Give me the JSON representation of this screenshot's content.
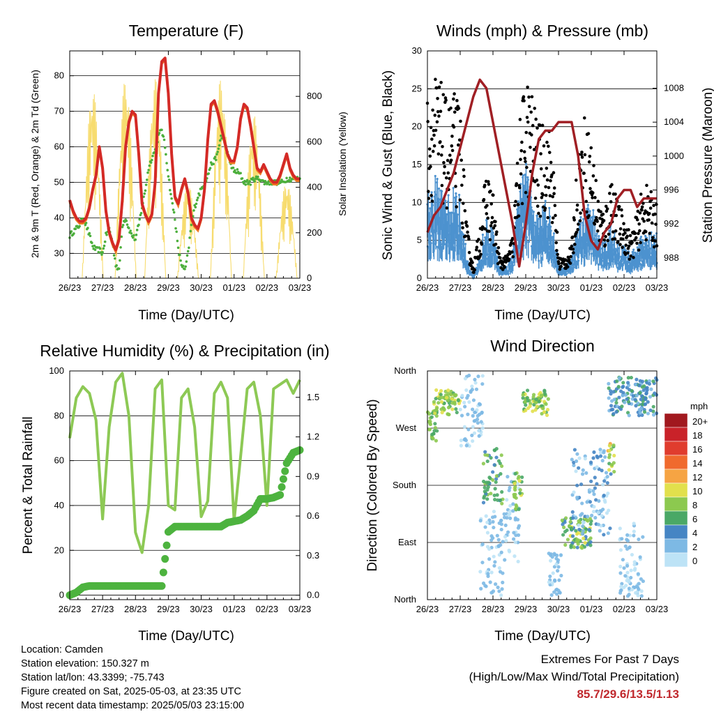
{
  "panels": {
    "temperature": {
      "title": "Temperature (F)",
      "ylabel": "2m & 9m T (Red, Orange) & 2m Td (Green)",
      "y2label": "Solar Insolation (Yellow)",
      "xlabel": "Time (Day/UTC)"
    },
    "winds": {
      "title": "Winds (mph) & Pressure (mb)",
      "ylabel": "Sonic Wind & Gust (Blue, Black)",
      "y2label": "Station Pressure (Maroon)",
      "xlabel": "Time (Day/UTC)"
    },
    "humidity": {
      "title": "Relative Humidity (%) & Precipitation (in)",
      "ylabel": "Percent & Total Rainfall",
      "xlabel": "Time (Day/UTC)"
    },
    "direction": {
      "title": "Wind Direction",
      "ylabel": "Direction (Colored By Speed)",
      "xlabel": "Time (Day/UTC)",
      "legend_title": "mph"
    }
  },
  "info": {
    "location": "Location: Camden",
    "elevation": "Station elevation: 150.327 m",
    "latlon": "Station lat/lon: 43.3399; -75.743",
    "created": "Figure created on Sat, 2025-05-03, at 23:35 UTC",
    "recent": "Most recent data timestamp: 2025/05/03 23:15:00"
  },
  "extremes": {
    "line1": "Extremes For Past 7 Days",
    "line2": "(High/Low/Max Wind/Total Precipitation)",
    "values": "85.7/29.6/13.5/1.13"
  },
  "colors": {
    "temp2m": "#d42a26",
    "temp9m": "#f07a23",
    "dewpoint": "#4caf3c",
    "solar": "#f7dc6f",
    "wind": "#4d92cf",
    "gust": "#000000",
    "pressure": "#a01f24",
    "rh": "#8dc955",
    "precip": "#4db33f"
  },
  "chart_data": [
    {
      "type": "line",
      "name": "temperature",
      "x_ticks": [
        "26/23",
        "27/23",
        "28/23",
        "29/23",
        "30/23",
        "01/23",
        "02/23",
        "03/23"
      ],
      "ylim": [
        23,
        87
      ],
      "y_ticks": [
        30,
        40,
        50,
        60,
        70,
        80
      ],
      "y2lim": [
        0,
        1000
      ],
      "y2_ticks": [
        0,
        200,
        400,
        600,
        800
      ],
      "x": [
        0,
        0.1,
        0.2,
        0.3,
        0.4,
        0.5,
        0.6,
        0.7,
        0.8,
        0.9,
        1.0,
        1.1,
        1.2,
        1.3,
        1.4,
        1.5,
        1.6,
        1.7,
        1.8,
        1.9,
        2.0,
        2.1,
        2.2,
        2.3,
        2.4,
        2.5,
        2.6,
        2.7,
        2.8,
        2.9,
        3.0,
        3.1,
        3.2,
        3.3,
        3.4,
        3.5,
        3.6,
        3.7,
        3.8,
        3.9,
        4.0,
        4.1,
        4.2,
        4.3,
        4.4,
        4.5,
        4.6,
        4.7,
        4.8,
        4.9,
        5.0,
        5.1,
        5.2,
        5.3,
        5.4,
        5.5,
        5.6,
        5.7,
        5.8,
        5.9,
        6.0,
        6.1,
        6.2,
        6.3,
        6.4,
        6.5,
        6.6,
        6.7,
        6.8,
        6.9,
        7.0
      ],
      "temp_2m": [
        45,
        42,
        40,
        39,
        39,
        40,
        43,
        48,
        52,
        60,
        54,
        42,
        36,
        33,
        31,
        34,
        45,
        60,
        67,
        70,
        69,
        58,
        44,
        41,
        39,
        41,
        50,
        75,
        84,
        85,
        75,
        58,
        46,
        44,
        48,
        51,
        47,
        40,
        38,
        37,
        40,
        48,
        62,
        72,
        73,
        70,
        66,
        62,
        58,
        56,
        56,
        60,
        68,
        72,
        71,
        66,
        60,
        54,
        53,
        55,
        53,
        51,
        50,
        50,
        52,
        55,
        58,
        54,
        52,
        51,
        51
      ],
      "dewpoint_2m": [
        35,
        36,
        37,
        38,
        40,
        38,
        35,
        32,
        31,
        31,
        30,
        35,
        37,
        33,
        27,
        25,
        38,
        40,
        37,
        35,
        34,
        38,
        43,
        48,
        54,
        57,
        59,
        63,
        65,
        60,
        52,
        45,
        40,
        31,
        27,
        25,
        30,
        38,
        43,
        46,
        48,
        50,
        52,
        55,
        56,
        58,
        63,
        62,
        58,
        55,
        53,
        53,
        52,
        50,
        50,
        50,
        51,
        51,
        51,
        50,
        50,
        50,
        50,
        50,
        50,
        50,
        51,
        51,
        51,
        51,
        51
      ],
      "solar_peaks": [
        {
          "x": 0.7,
          "y": 840
        },
        {
          "x": 1.7,
          "y": 880
        },
        {
          "x": 2.6,
          "y": 880
        },
        {
          "x": 3.6,
          "y": 420
        },
        {
          "x": 4.6,
          "y": 880
        },
        {
          "x": 5.6,
          "y": 720
        },
        {
          "x": 6.6,
          "y": 430
        }
      ]
    },
    {
      "type": "scatter",
      "name": "winds",
      "x_ticks": [
        "26/23",
        "27/23",
        "28/23",
        "29/23",
        "30/23",
        "01/23",
        "02/23",
        "03/23"
      ],
      "ylim": [
        0,
        30
      ],
      "y_ticks": [
        0,
        5,
        10,
        15,
        20,
        25,
        30
      ],
      "y2lim": [
        985.6,
        1012.4
      ],
      "y2_ticks": [
        988,
        992,
        996,
        1000,
        1004,
        1008
      ],
      "x": [
        0,
        0.2,
        0.4,
        0.6,
        0.8,
        1.0,
        1.2,
        1.4,
        1.6,
        1.8,
        2.0,
        2.2,
        2.4,
        2.6,
        2.8,
        3.0,
        3.2,
        3.4,
        3.6,
        3.8,
        4.0,
        4.2,
        4.4,
        4.6,
        4.8,
        5.0,
        5.2,
        5.4,
        5.6,
        5.8,
        6.0,
        6.2,
        6.4,
        6.6,
        6.8,
        7.0
      ],
      "wind_mean": [
        8,
        9,
        8,
        7,
        8,
        7,
        2,
        0,
        2,
        6,
        4,
        1,
        1,
        2,
        8,
        10,
        7,
        5,
        7,
        6,
        1,
        1,
        2,
        5,
        6,
        7,
        4,
        3,
        5,
        3,
        3,
        2,
        3,
        4,
        4,
        4
      ],
      "gust": [
        17,
        19,
        18,
        16,
        17,
        16,
        5,
        1,
        5,
        10,
        8,
        2,
        2,
        4,
        14,
        19,
        17,
        14,
        15,
        13,
        2,
        2,
        3,
        12,
        15,
        13,
        8,
        6,
        10,
        7,
        6,
        4,
        6,
        9,
        8,
        7
      ],
      "pressure": [
        991,
        993,
        994,
        996,
        998,
        1001,
        1004,
        1007,
        1009,
        1008,
        1004,
        1000,
        996,
        992,
        987,
        992,
        998,
        1002,
        1003,
        1003,
        1004,
        1004,
        1004,
        1000,
        993,
        990,
        989,
        991,
        992,
        995,
        996,
        996,
        994,
        995,
        995,
        995
      ]
    },
    {
      "type": "line",
      "name": "humidity",
      "x_ticks": [
        "26/23",
        "27/23",
        "28/23",
        "29/23",
        "30/23",
        "01/23",
        "02/23",
        "03/23"
      ],
      "ylim": [
        -2,
        100
      ],
      "y_ticks": [
        0,
        20,
        40,
        60,
        80,
        100
      ],
      "y2_ticks": [
        "0.0",
        "0.3",
        "0.6",
        "0.9",
        "1.2",
        "1.5"
      ],
      "y2lim": [
        -0.034,
        1.7
      ],
      "x": [
        0,
        0.2,
        0.4,
        0.6,
        0.8,
        1.0,
        1.2,
        1.4,
        1.6,
        1.8,
        2.0,
        2.2,
        2.4,
        2.6,
        2.8,
        3.0,
        3.2,
        3.4,
        3.6,
        3.8,
        4.0,
        4.2,
        4.4,
        4.6,
        4.8,
        5.0,
        5.2,
        5.4,
        5.6,
        5.8,
        6.0,
        6.2,
        6.4,
        6.6,
        6.8,
        7.0
      ],
      "rh": [
        70,
        88,
        93,
        90,
        78,
        34,
        75,
        95,
        99,
        80,
        28,
        19,
        40,
        92,
        96,
        40,
        38,
        88,
        92,
        75,
        35,
        42,
        90,
        95,
        88,
        33,
        62,
        92,
        95,
        80,
        40,
        92,
        94,
        96,
        90,
        96
      ],
      "precip": [
        0,
        0.02,
        0.06,
        0.07,
        0.07,
        0.07,
        0.07,
        0.07,
        0.07,
        0.07,
        0.07,
        0.07,
        0.07,
        0.07,
        0.07,
        0.48,
        0.52,
        0.52,
        0.52,
        0.52,
        0.52,
        0.52,
        0.52,
        0.52,
        0.55,
        0.56,
        0.57,
        0.6,
        0.64,
        0.73,
        0.73,
        0.74,
        0.76,
        1.0,
        1.08,
        1.1
      ]
    },
    {
      "type": "scatter",
      "name": "direction",
      "x_ticks": [
        "26/23",
        "27/23",
        "28/23",
        "29/23",
        "30/23",
        "01/23",
        "02/23",
        "03/23"
      ],
      "y_ticks": [
        "North",
        "East",
        "South",
        "West",
        "North"
      ],
      "ylim": [
        0,
        360
      ],
      "legend": [
        "20+",
        "18",
        "16",
        "14",
        "12",
        "10",
        "8",
        "6",
        "4",
        "2",
        "0"
      ],
      "legend_colors": [
        "#a1181e",
        "#c92229",
        "#e03c2e",
        "#f06a2d",
        "#f6a443",
        "#e2e04c",
        "#8cc94f",
        "#4aa866",
        "#4585c4",
        "#7db9e4",
        "#bde3f6"
      ]
    }
  ]
}
